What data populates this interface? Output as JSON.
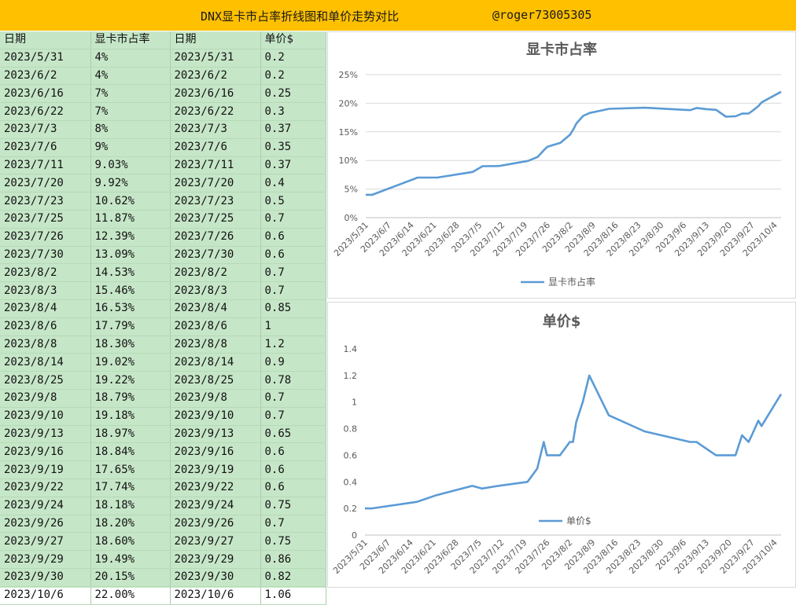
{
  "banner": {
    "title": "DNX显卡市占率折线图和单价走势对比",
    "handle": "@roger73005305"
  },
  "table": {
    "headers": [
      "日期",
      "显卡市占率",
      "日期",
      "单价$"
    ],
    "rows": [
      [
        "2023/5/31",
        "4%",
        "2023/5/31",
        "0.2"
      ],
      [
        "2023/6/2",
        "4%",
        "2023/6/2",
        "0.2"
      ],
      [
        "2023/6/16",
        "7%",
        "2023/6/16",
        "0.25"
      ],
      [
        "2023/6/22",
        "7%",
        "2023/6/22",
        "0.3"
      ],
      [
        "2023/7/3",
        "8%",
        "2023/7/3",
        "0.37"
      ],
      [
        "2023/7/6",
        "9%",
        "2023/7/6",
        "0.35"
      ],
      [
        "2023/7/11",
        "9.03%",
        "2023/7/11",
        "0.37"
      ],
      [
        "2023/7/20",
        "9.92%",
        "2023/7/20",
        "0.4"
      ],
      [
        "2023/7/23",
        "10.62%",
        "2023/7/23",
        "0.5"
      ],
      [
        "2023/7/25",
        "11.87%",
        "2023/7/25",
        "0.7"
      ],
      [
        "2023/7/26",
        "12.39%",
        "2023/7/26",
        "0.6"
      ],
      [
        "2023/7/30",
        "13.09%",
        "2023/7/30",
        "0.6"
      ],
      [
        "2023/8/2",
        "14.53%",
        "2023/8/2",
        "0.7"
      ],
      [
        "2023/8/3",
        "15.46%",
        "2023/8/3",
        "0.7"
      ],
      [
        "2023/8/4",
        "16.53%",
        "2023/8/4",
        "0.85"
      ],
      [
        "2023/8/6",
        "17.79%",
        "2023/8/6",
        "1"
      ],
      [
        "2023/8/8",
        "18.30%",
        "2023/8/8",
        "1.2"
      ],
      [
        "2023/8/14",
        "19.02%",
        "2023/8/14",
        "0.9"
      ],
      [
        "2023/8/25",
        "19.22%",
        "2023/8/25",
        "0.78"
      ],
      [
        "2023/9/8",
        "18.79%",
        "2023/9/8",
        "0.7"
      ],
      [
        "2023/9/10",
        "19.18%",
        "2023/9/10",
        "0.7"
      ],
      [
        "2023/9/13",
        "18.97%",
        "2023/9/13",
        "0.65"
      ],
      [
        "2023/9/16",
        "18.84%",
        "2023/9/16",
        "0.6"
      ],
      [
        "2023/9/19",
        "17.65%",
        "2023/9/19",
        "0.6"
      ],
      [
        "2023/9/22",
        "17.74%",
        "2023/9/22",
        "0.6"
      ],
      [
        "2023/9/24",
        "18.18%",
        "2023/9/24",
        "0.75"
      ],
      [
        "2023/9/26",
        "18.20%",
        "2023/9/26",
        "0.7"
      ],
      [
        "2023/9/27",
        "18.60%",
        "2023/9/27",
        "0.75"
      ],
      [
        "2023/9/29",
        "19.49%",
        "2023/9/29",
        "0.86"
      ],
      [
        "2023/9/30",
        "20.15%",
        "2023/9/30",
        "0.82"
      ],
      [
        "2023/10/6",
        "22.00%",
        "2023/10/6",
        "1.06"
      ]
    ]
  },
  "chart_data": [
    {
      "type": "line",
      "title": "显卡市占率",
      "legend": "bottom",
      "series": [
        {
          "name": "显卡市占率"
        }
      ],
      "x": [
        "2023/5/31",
        "2023/6/2",
        "2023/6/16",
        "2023/6/22",
        "2023/7/3",
        "2023/7/6",
        "2023/7/11",
        "2023/7/20",
        "2023/7/23",
        "2023/7/25",
        "2023/7/26",
        "2023/7/30",
        "2023/8/2",
        "2023/8/3",
        "2023/8/4",
        "2023/8/6",
        "2023/8/8",
        "2023/8/14",
        "2023/8/25",
        "2023/9/8",
        "2023/9/10",
        "2023/9/13",
        "2023/9/16",
        "2023/9/19",
        "2023/9/22",
        "2023/9/24",
        "2023/9/26",
        "2023/9/27",
        "2023/9/29",
        "2023/9/30",
        "2023/10/6"
      ],
      "values": [
        4,
        4,
        7,
        7,
        8,
        9,
        9.03,
        9.92,
        10.62,
        11.87,
        12.39,
        13.09,
        14.53,
        15.46,
        16.53,
        17.79,
        18.3,
        19.02,
        19.22,
        18.79,
        19.18,
        18.97,
        18.84,
        17.65,
        17.74,
        18.18,
        18.2,
        18.6,
        19.49,
        20.15,
        22.0
      ],
      "ylim": [
        0,
        25
      ],
      "yticks": [
        0,
        5,
        10,
        15,
        20,
        25
      ],
      "ytick_labels": [
        "0%",
        "5%",
        "10%",
        "15%",
        "20%",
        "25%"
      ],
      "xticks": [
        "2023/5/31",
        "2023/6/7",
        "2023/6/14",
        "2023/6/21",
        "2023/6/28",
        "2023/7/5",
        "2023/7/12",
        "2023/7/19",
        "2023/7/26",
        "2023/8/2",
        "2023/8/9",
        "2023/8/16",
        "2023/8/23",
        "2023/8/30",
        "2023/9/6",
        "2023/9/13",
        "2023/9/20",
        "2023/9/27",
        "2023/10/4"
      ],
      "xlim": [
        "2023/5/31",
        "2023/10/6"
      ],
      "grid": true,
      "color": "#5B9BD5"
    },
    {
      "type": "line",
      "title": "单价$",
      "legend": "bottom",
      "series": [
        {
          "name": "单价$"
        }
      ],
      "x": [
        "2023/5/31",
        "2023/6/2",
        "2023/6/16",
        "2023/6/22",
        "2023/7/3",
        "2023/7/6",
        "2023/7/11",
        "2023/7/20",
        "2023/7/23",
        "2023/7/25",
        "2023/7/26",
        "2023/7/30",
        "2023/8/2",
        "2023/8/3",
        "2023/8/4",
        "2023/8/6",
        "2023/8/8",
        "2023/8/14",
        "2023/8/25",
        "2023/9/8",
        "2023/9/10",
        "2023/9/13",
        "2023/9/16",
        "2023/9/19",
        "2023/9/22",
        "2023/9/24",
        "2023/9/26",
        "2023/9/27",
        "2023/9/29",
        "2023/9/30",
        "2023/10/6"
      ],
      "values": [
        0.2,
        0.2,
        0.25,
        0.3,
        0.37,
        0.35,
        0.37,
        0.4,
        0.5,
        0.7,
        0.6,
        0.6,
        0.7,
        0.7,
        0.85,
        1,
        1.2,
        0.9,
        0.78,
        0.7,
        0.7,
        0.65,
        0.6,
        0.6,
        0.6,
        0.75,
        0.7,
        0.75,
        0.86,
        0.82,
        1.06
      ],
      "ylim": [
        0,
        1.4
      ],
      "yticks": [
        0,
        0.2,
        0.4,
        0.6,
        0.8,
        1,
        1.2,
        1.4
      ],
      "ytick_labels": [
        "0",
        "0.2",
        "0.4",
        "0.6",
        "0.8",
        "1",
        "1.2",
        "1.4"
      ],
      "xticks": [
        "2023/5/31",
        "2023/6/7",
        "2023/6/14",
        "2023/6/21",
        "2023/6/28",
        "2023/7/5",
        "2023/7/12",
        "2023/7/19",
        "2023/7/26",
        "2023/8/2",
        "2023/8/9",
        "2023/8/16",
        "2023/8/23",
        "2023/8/30",
        "2023/9/6",
        "2023/9/13",
        "2023/9/20",
        "2023/9/27",
        "2023/10/4"
      ],
      "xlim": [
        "2023/5/31",
        "2023/10/6"
      ],
      "grid": false,
      "color": "#5B9BD5"
    }
  ]
}
